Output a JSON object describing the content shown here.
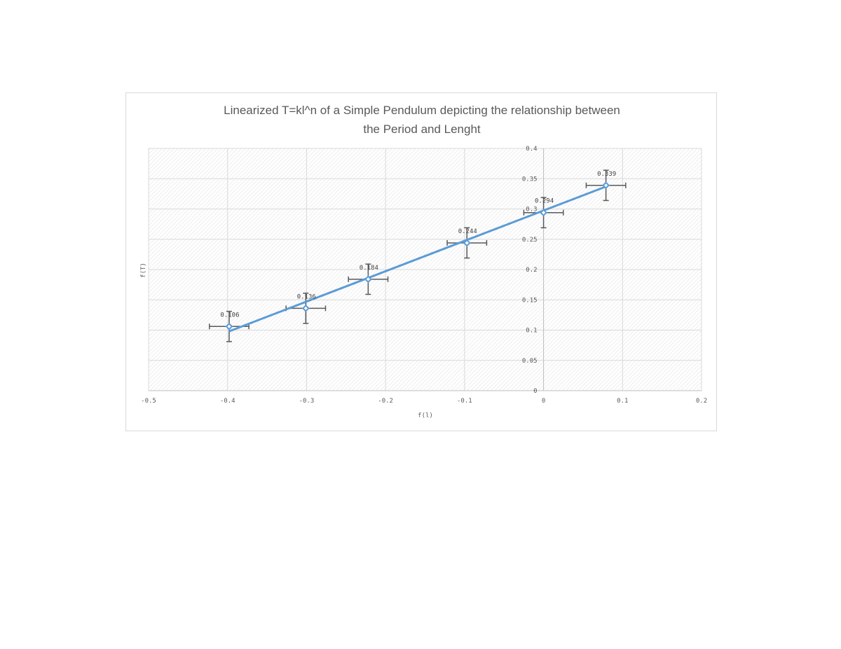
{
  "chart_data": {
    "type": "scatter",
    "title_lines": [
      "Linearized T=kl^n of a Simple Pendulum depicting the relationship between",
      "the Period and Lenght"
    ],
    "xlabel": "f(l)",
    "ylabel": "f(T)",
    "xlim": [
      -0.5,
      0.2
    ],
    "ylim": [
      0,
      0.4
    ],
    "x_ticks": [
      -0.5,
      -0.4,
      -0.3,
      -0.2,
      -0.1,
      0,
      0.1,
      0.2
    ],
    "x_tick_labels": [
      "-0.5",
      "-0.4",
      "-0.3",
      "-0.2",
      "-0.1",
      "0",
      "0.1",
      "0.2"
    ],
    "y_ticks": [
      0,
      0.05,
      0.1,
      0.15,
      0.2,
      0.25,
      0.3,
      0.35,
      0.4
    ],
    "y_tick_labels": [
      "0",
      "0.05",
      "0.1",
      "0.15",
      "0.2",
      "0.25",
      "0.3",
      "0.35",
      "0.4"
    ],
    "grid": true,
    "plot_background": "diagonal-hatch",
    "series": [
      {
        "x": [
          -0.398,
          -0.301,
          -0.222,
          -0.097,
          0.0,
          0.079
        ],
        "y": [
          0.106,
          0.136,
          0.184,
          0.244,
          0.294,
          0.339
        ],
        "data_labels": [
          "0.106",
          "0.136",
          "0.184",
          "0.244",
          "0.294",
          "0.339"
        ],
        "x_error": 0.025,
        "y_error": 0.025,
        "marker": "diamond-hollow",
        "color": "#5b9bd5"
      }
    ],
    "trendline": {
      "x": [
        -0.398,
        0.079
      ],
      "y": [
        0.098,
        0.337
      ],
      "color": "#5b9bd5"
    },
    "error_bar_color": "#595959",
    "grid_color": "#d9d9d9"
  }
}
